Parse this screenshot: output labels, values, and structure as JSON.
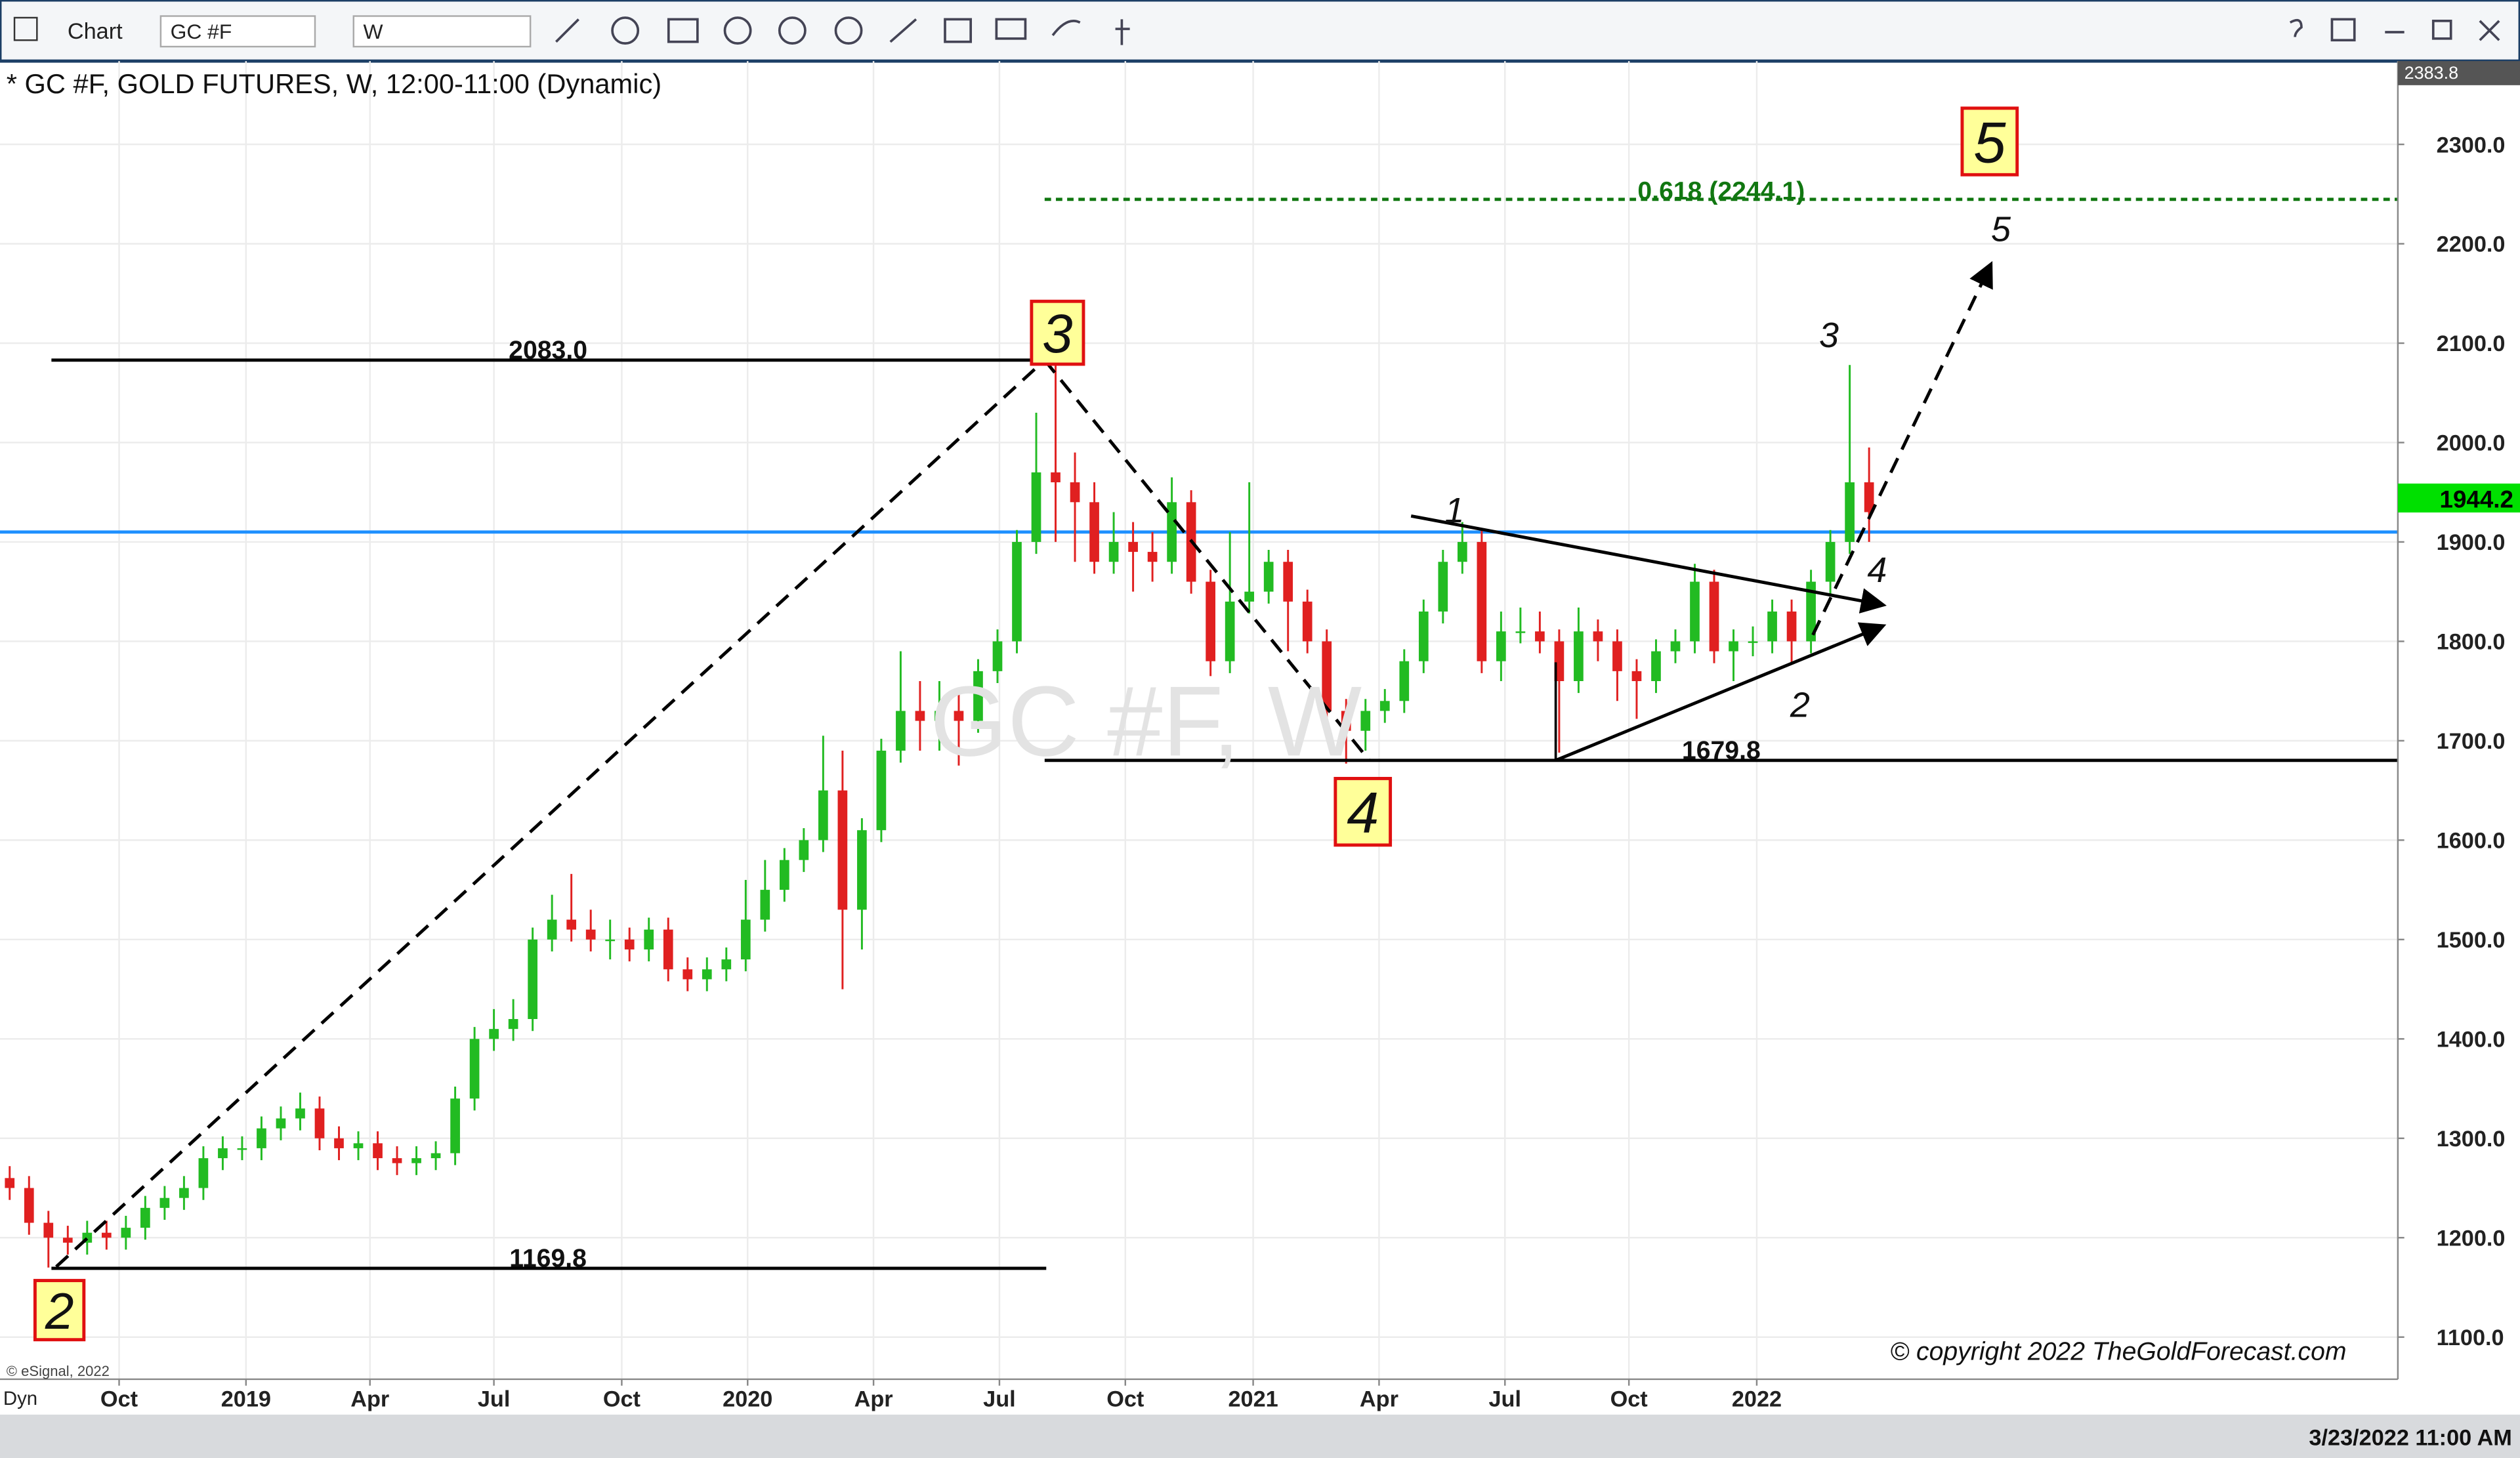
{
  "toolbar": {
    "title": "Chart",
    "symbol": "GC #F",
    "interval": "W"
  },
  "chart_data": {
    "type": "candlestick",
    "title": "* GC #F, GOLD FUTURES, W, 12:00-11:00 (Dynamic)",
    "watermark": "GC #F, W",
    "source": "© eSignal, 2022",
    "copyright": "© copyright 2022 TheGoldForecast.com",
    "mode": "Dyn",
    "timestamp": "3/23/2022 11:00 AM",
    "top_value_label": "2383.8",
    "last_price": {
      "value": 1944.2,
      "label": "1944.2",
      "color": "#00e000"
    },
    "reference_line": {
      "value": 1910,
      "color": "#1e90ff"
    },
    "up_color": "#22bb22",
    "down_color": "#e02020",
    "ylim": [
      1057.6,
      2383.8
    ],
    "yticks": [
      {
        "value": 1100,
        "label": "1100.0"
      },
      {
        "value": 1200,
        "label": "1200.0"
      },
      {
        "value": 1300,
        "label": "1300.0"
      },
      {
        "value": 1400,
        "label": "1400.0"
      },
      {
        "value": 1500,
        "label": "1500.0"
      },
      {
        "value": 1600,
        "label": "1600.0"
      },
      {
        "value": 1700,
        "label": "1700.0"
      },
      {
        "value": 1800,
        "label": "1800.0"
      },
      {
        "value": 1900,
        "label": "1900.0"
      },
      {
        "value": 2000,
        "label": "2000.0"
      },
      {
        "value": 2100,
        "label": "2100.0"
      },
      {
        "value": 2200,
        "label": "2200.0"
      },
      {
        "value": 2300,
        "label": "2300.0"
      }
    ],
    "xlim": [
      -0.5,
      123.3
    ],
    "xticks": [
      {
        "value": 5.65,
        "label": "Oct"
      },
      {
        "value": 12.2,
        "label": "2019"
      },
      {
        "value": 18.6,
        "label": "Apr"
      },
      {
        "value": 25.0,
        "label": "Jul"
      },
      {
        "value": 31.6,
        "label": "Oct"
      },
      {
        "value": 38.1,
        "label": "2020"
      },
      {
        "value": 44.6,
        "label": "Apr"
      },
      {
        "value": 51.1,
        "label": "Jul"
      },
      {
        "value": 57.6,
        "label": "Oct"
      },
      {
        "value": 64.2,
        "label": "2021"
      },
      {
        "value": 70.7,
        "label": "Apr"
      },
      {
        "value": 77.2,
        "label": "Jul"
      },
      {
        "value": 83.6,
        "label": "Oct"
      },
      {
        "value": 90.2,
        "label": "2022"
      }
    ],
    "grid": true,
    "open": [
      1260,
      1250,
      1215,
      1200,
      1195,
      1205,
      1200,
      1210,
      1230,
      1240,
      1250,
      1280,
      1290,
      1290,
      1310,
      1320,
      1330,
      1300,
      1290,
      1295,
      1280,
      1275,
      1280,
      1285,
      1340,
      1400,
      1410,
      1420,
      1500,
      1520,
      1510,
      1500,
      1500,
      1490,
      1510,
      1470,
      1460,
      1470,
      1480,
      1520,
      1550,
      1580,
      1600,
      1650,
      1530,
      1610,
      1690,
      1730,
      1720,
      1730,
      1720,
      1770,
      1800,
      1900,
      1970,
      1960,
      1940,
      1880,
      1900,
      1890,
      1880,
      1940,
      1860,
      1780,
      1840,
      1850,
      1880,
      1840,
      1800,
      1730,
      1710,
      1730,
      1740,
      1780,
      1830,
      1880,
      1900,
      1780,
      1810,
      1810,
      1800,
      1760,
      1810,
      1800,
      1770,
      1760,
      1790,
      1800,
      1860,
      1790,
      1800,
      1800,
      1830,
      1800,
      1860,
      1900,
      1960
    ],
    "high": [
      1272,
      1262,
      1227,
      1212,
      1217,
      1217,
      1222,
      1242,
      1252,
      1262,
      1292,
      1302,
      1302,
      1322,
      1332,
      1346,
      1342,
      1312,
      1307,
      1307,
      1292,
      1292,
      1297,
      1352,
      1412,
      1430,
      1440,
      1512,
      1545,
      1566,
      1530,
      1520,
      1512,
      1522,
      1522,
      1482,
      1482,
      1492,
      1560,
      1580,
      1592,
      1612,
      1705,
      1690,
      1622,
      1702,
      1790,
      1760,
      1760,
      1750,
      1782,
      1812,
      1912,
      2030,
      2083,
      1990,
      1960,
      1930,
      1920,
      1910,
      1965,
      1952,
      1872,
      1910,
      1960,
      1892,
      1892,
      1852,
      1812,
      1742,
      1742,
      1752,
      1792,
      1842,
      1892,
      1920,
      1912,
      1830,
      1834,
      1830,
      1812,
      1834,
      1822,
      1812,
      1782,
      1802,
      1812,
      1878,
      1872,
      1812,
      1815,
      1842,
      1842,
      1872,
      1912,
      2078,
      1995
    ],
    "low": [
      1238,
      1203,
      1170,
      1183,
      1183,
      1188,
      1188,
      1198,
      1218,
      1228,
      1238,
      1268,
      1278,
      1278,
      1298,
      1308,
      1288,
      1278,
      1278,
      1268,
      1263,
      1263,
      1268,
      1273,
      1328,
      1388,
      1398,
      1408,
      1488,
      1498,
      1488,
      1480,
      1478,
      1478,
      1458,
      1448,
      1448,
      1458,
      1468,
      1508,
      1538,
      1568,
      1588,
      1450,
      1490,
      1598,
      1678,
      1690,
      1690,
      1675,
      1708,
      1758,
      1788,
      1888,
      1900,
      1880,
      1868,
      1868,
      1850,
      1860,
      1868,
      1848,
      1765,
      1768,
      1828,
      1838,
      1790,
      1788,
      1718,
      1677,
      1690,
      1718,
      1728,
      1768,
      1818,
      1868,
      1768,
      1760,
      1798,
      1788,
      1688,
      1748,
      1780,
      1740,
      1722,
      1748,
      1778,
      1788,
      1778,
      1760,
      1785,
      1788,
      1778,
      1788,
      1848,
      1888,
      1900
    ],
    "close": [
      1250,
      1215,
      1200,
      1195,
      1205,
      1200,
      1210,
      1230,
      1240,
      1250,
      1280,
      1290,
      1290,
      1310,
      1320,
      1330,
      1300,
      1290,
      1295,
      1280,
      1275,
      1280,
      1285,
      1340,
      1400,
      1410,
      1420,
      1500,
      1520,
      1510,
      1500,
      1500,
      1490,
      1510,
      1470,
      1460,
      1470,
      1480,
      1520,
      1550,
      1580,
      1600,
      1650,
      1530,
      1610,
      1690,
      1730,
      1720,
      1730,
      1720,
      1770,
      1800,
      1900,
      1970,
      1960,
      1940,
      1880,
      1900,
      1890,
      1880,
      1940,
      1860,
      1780,
      1840,
      1850,
      1880,
      1840,
      1800,
      1730,
      1710,
      1730,
      1740,
      1780,
      1830,
      1880,
      1900,
      1780,
      1810,
      1810,
      1800,
      1760,
      1810,
      1800,
      1770,
      1760,
      1790,
      1800,
      1860,
      1790,
      1800,
      1800,
      1830,
      1800,
      1860,
      1900,
      1960,
      1930
    ],
    "annotations": [
      "2083.0",
      "1169.8",
      "1679.8",
      "0.618 (2244.1)",
      "3",
      "4",
      "2",
      "5",
      "1",
      "2",
      "3",
      "4",
      "5"
    ]
  }
}
